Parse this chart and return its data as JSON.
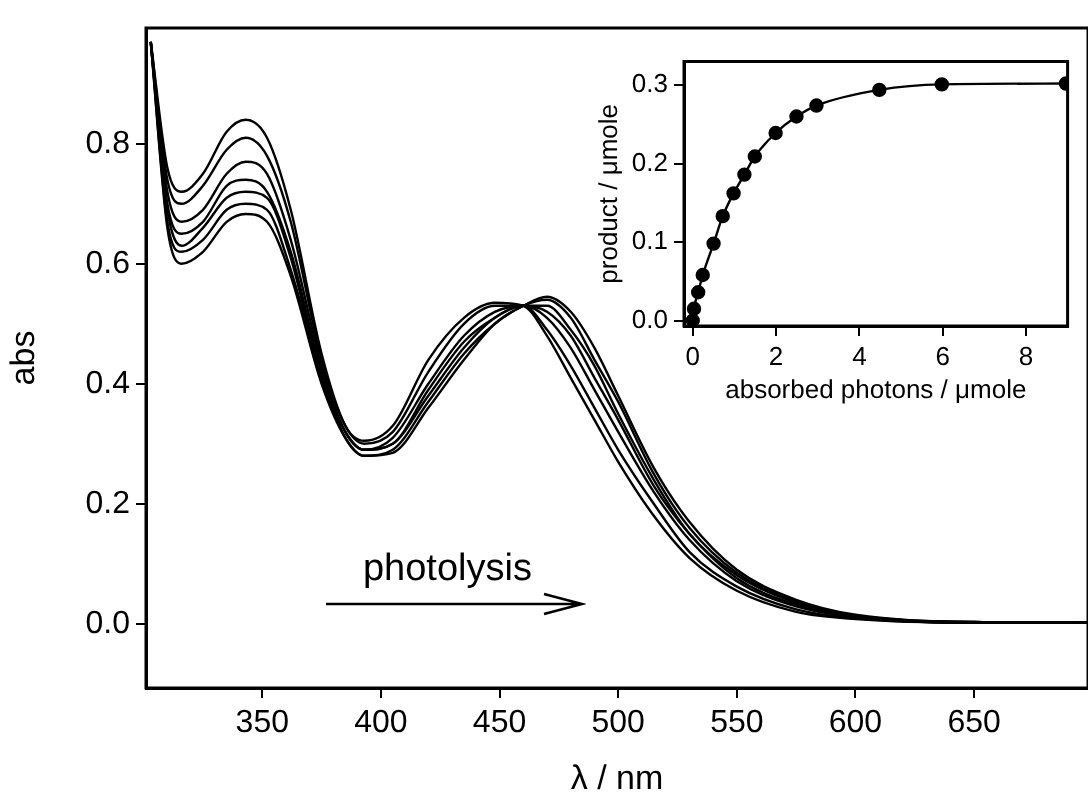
{
  "chart_data": [
    {
      "type": "line",
      "xlabel": "λ / nm",
      "ylabel": "abs",
      "xlim": [
        301,
        698
      ],
      "ylim": [
        -0.107,
        0.993
      ],
      "xticks": [
        350,
        400,
        450,
        500,
        550,
        600,
        650
      ],
      "yticks": [
        {
          "value": 0,
          "label": "0.0"
        },
        {
          "value": 0.2,
          "label": "0.2"
        },
        {
          "value": 0.4,
          "label": "0.4"
        },
        {
          "value": 0.6,
          "label": "0.6"
        },
        {
          "value": 0.8,
          "label": "0.8"
        }
      ],
      "marker": "none",
      "annotations": [
        "photolysis"
      ],
      "x": [
        303,
        310,
        316,
        325,
        335,
        343,
        352,
        362,
        375,
        385,
        393,
        405,
        420,
        435,
        448,
        460,
        470,
        480,
        490,
        500,
        515,
        530,
        550,
        575,
        600,
        650,
        698
      ],
      "series": [
        {
          "color": "#000000",
          "values": [
            0.97,
            0.76,
            0.72,
            0.75,
            0.82,
            0.84,
            0.81,
            0.69,
            0.45,
            0.33,
            0.305,
            0.33,
            0.44,
            0.51,
            0.535,
            0.53,
            0.48,
            0.41,
            0.34,
            0.27,
            0.18,
            0.11,
            0.055,
            0.02,
            0.008,
            0.002,
            0.002
          ]
        },
        {
          "color": "#000000",
          "values": [
            0.97,
            0.74,
            0.7,
            0.73,
            0.79,
            0.81,
            0.78,
            0.67,
            0.44,
            0.33,
            0.3,
            0.32,
            0.42,
            0.5,
            0.53,
            0.53,
            0.49,
            0.43,
            0.36,
            0.29,
            0.2,
            0.12,
            0.062,
            0.024,
            0.009,
            0.002,
            0.002
          ]
        },
        {
          "color": "#000000",
          "values": [
            0.97,
            0.72,
            0.67,
            0.69,
            0.75,
            0.77,
            0.75,
            0.64,
            0.43,
            0.32,
            0.29,
            0.31,
            0.4,
            0.48,
            0.52,
            0.53,
            0.51,
            0.46,
            0.39,
            0.32,
            0.22,
            0.14,
            0.071,
            0.029,
            0.011,
            0.002,
            0.002
          ]
        },
        {
          "color": "#000000",
          "values": [
            0.97,
            0.7,
            0.65,
            0.67,
            0.73,
            0.74,
            0.72,
            0.62,
            0.42,
            0.32,
            0.29,
            0.3,
            0.39,
            0.47,
            0.51,
            0.53,
            0.52,
            0.48,
            0.41,
            0.34,
            0.23,
            0.15,
            0.076,
            0.032,
            0.012,
            0.002,
            0.002
          ]
        },
        {
          "color": "#000000",
          "values": [
            0.97,
            0.69,
            0.63,
            0.66,
            0.71,
            0.72,
            0.71,
            0.61,
            0.41,
            0.32,
            0.29,
            0.3,
            0.38,
            0.46,
            0.51,
            0.53,
            0.53,
            0.49,
            0.43,
            0.35,
            0.24,
            0.15,
            0.081,
            0.035,
            0.013,
            0.003,
            0.002
          ]
        },
        {
          "color": "#000000",
          "values": [
            0.97,
            0.67,
            0.62,
            0.64,
            0.69,
            0.7,
            0.69,
            0.59,
            0.41,
            0.31,
            0.28,
            0.29,
            0.37,
            0.45,
            0.5,
            0.53,
            0.54,
            0.51,
            0.44,
            0.37,
            0.25,
            0.16,
            0.085,
            0.037,
            0.014,
            0.003,
            0.002
          ]
        },
        {
          "color": "#000000",
          "values": [
            0.97,
            0.66,
            0.6,
            0.62,
            0.67,
            0.683,
            0.67,
            0.58,
            0.4,
            0.31,
            0.28,
            0.285,
            0.36,
            0.44,
            0.5,
            0.53,
            0.545,
            0.52,
            0.46,
            0.38,
            0.26,
            0.17,
            0.09,
            0.04,
            0.015,
            0.003,
            0.002
          ]
        }
      ]
    },
    {
      "type": "line",
      "xlabel": "absorbed photons / μmole",
      "ylabel": "product / μmole",
      "xlim": [
        -0.21,
        9.0
      ],
      "ylim": [
        -0.007,
        0.33
      ],
      "xticks": [
        0,
        2,
        4,
        6,
        8
      ],
      "yticks": [
        {
          "value": 0,
          "label": "0.0"
        },
        {
          "value": 0.1,
          "label": "0.1"
        },
        {
          "value": 0.2,
          "label": "0.2"
        },
        {
          "value": 0.3,
          "label": "0.3"
        }
      ],
      "marker": "circle",
      "color": "#000000",
      "x": [
        0,
        0.03,
        0.13,
        0.24,
        0.5,
        0.72,
        0.98,
        1.24,
        1.49,
        1.99,
        2.49,
        2.97,
        4.48,
        5.98,
        8.96
      ],
      "values": [
        0,
        0.015,
        0.036,
        0.058,
        0.098,
        0.133,
        0.162,
        0.186,
        0.209,
        0.239,
        0.26,
        0.274,
        0.294,
        0.301,
        0.302
      ]
    }
  ]
}
